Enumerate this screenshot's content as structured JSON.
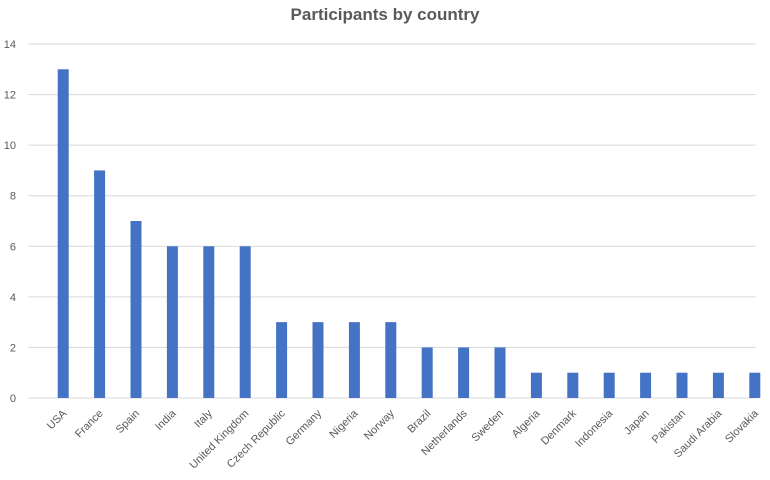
{
  "chart_data": {
    "type": "bar",
    "title": "Participants by country",
    "xlabel": "",
    "ylabel": "",
    "categories": [
      "USA",
      "France",
      "Spain",
      "India",
      "Italy",
      "United Kingdom",
      "Czech Republic",
      "Germany",
      "Nigeria",
      "Norway",
      "Brazil",
      "Netherlands",
      "Sweden",
      "Algeria",
      "Denmark",
      "Indonesia",
      "Japan",
      "Pakistan",
      "Saudi Arabia",
      "Slovakia"
    ],
    "values": [
      13,
      9,
      7,
      6,
      6,
      6,
      3,
      3,
      3,
      3,
      2,
      2,
      2,
      1,
      1,
      1,
      1,
      1,
      1,
      1
    ],
    "ylim": [
      0,
      14
    ],
    "yticks": [
      0,
      2,
      4,
      6,
      8,
      10,
      12,
      14
    ],
    "grid": true,
    "legend": "none",
    "colors": {
      "bar": "#4472c4",
      "grid": "#d9d9d9",
      "text": "#595959"
    }
  }
}
